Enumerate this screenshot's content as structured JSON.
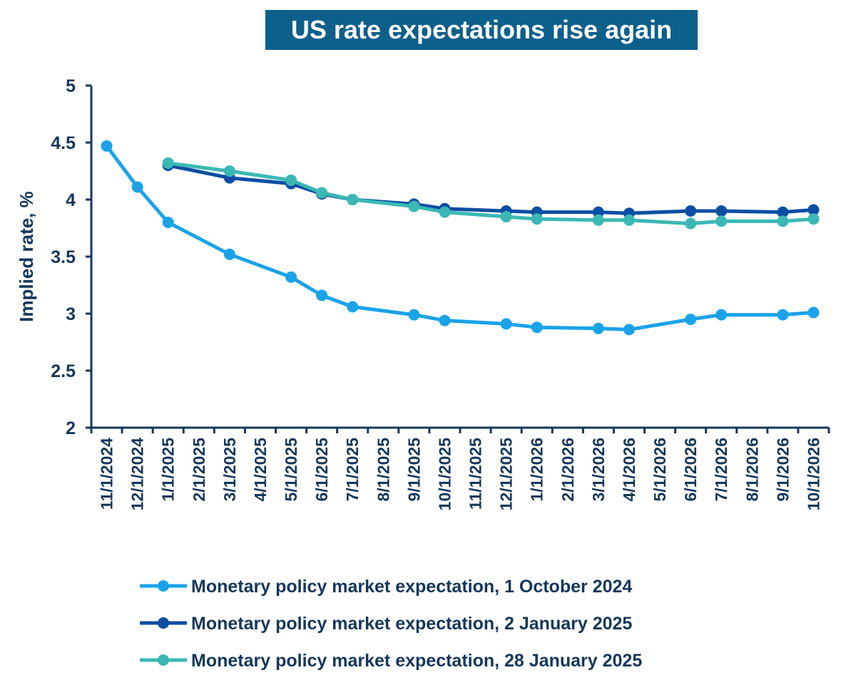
{
  "chart_data": {
    "type": "line",
    "title": "US rate expectations rise again",
    "xlabel": "",
    "ylabel": "Implied rate, %",
    "ylim": [
      2,
      5
    ],
    "yticks": [
      "2",
      "2.5",
      "3",
      "3.5",
      "4",
      "4.5",
      "5"
    ],
    "categories": [
      "11/1/2024",
      "12/1/2024",
      "1/1/2025",
      "2/1/2025",
      "3/1/2025",
      "4/1/2025",
      "5/1/2025",
      "6/1/2025",
      "7/1/2025",
      "8/1/2025",
      "9/1/2025",
      "10/1/2025",
      "11/1/2025",
      "12/1/2025",
      "1/1/2026",
      "2/1/2026",
      "3/1/2026",
      "4/1/2026",
      "5/1/2026",
      "6/1/2026",
      "7/1/2026",
      "8/1/2026",
      "9/1/2026",
      "10/1/2026"
    ],
    "series": [
      {
        "name": "Monetary policy market expectation, 1 October 2024",
        "color": "#1aa3e8",
        "points": [
          {
            "x": "11/1/2024",
            "y": 4.47
          },
          {
            "x": "12/1/2024",
            "y": 4.11
          },
          {
            "x": "1/1/2025",
            "y": 3.8
          },
          {
            "x": "3/1/2025",
            "y": 3.52
          },
          {
            "x": "5/1/2025",
            "y": 3.32
          },
          {
            "x": "6/1/2025",
            "y": 3.16
          },
          {
            "x": "7/1/2025",
            "y": 3.06
          },
          {
            "x": "9/1/2025",
            "y": 2.99
          },
          {
            "x": "10/1/2025",
            "y": 2.94
          },
          {
            "x": "12/1/2025",
            "y": 2.91
          },
          {
            "x": "1/1/2026",
            "y": 2.88
          },
          {
            "x": "3/1/2026",
            "y": 2.87
          },
          {
            "x": "4/1/2026",
            "y": 2.86
          },
          {
            "x": "6/1/2026",
            "y": 2.95
          },
          {
            "x": "7/1/2026",
            "y": 2.99
          },
          {
            "x": "9/1/2026",
            "y": 2.99
          },
          {
            "x": "10/1/2026",
            "y": 3.01
          }
        ]
      },
      {
        "name": "Monetary policy market expectation, 2 January 2025",
        "color": "#0b4ea2",
        "points": [
          {
            "x": "1/1/2025",
            "y": 4.3
          },
          {
            "x": "3/1/2025",
            "y": 4.19
          },
          {
            "x": "5/1/2025",
            "y": 4.14
          },
          {
            "x": "6/1/2025",
            "y": 4.05
          },
          {
            "x": "7/1/2025",
            "y": 4.0
          },
          {
            "x": "9/1/2025",
            "y": 3.96
          },
          {
            "x": "10/1/2025",
            "y": 3.92
          },
          {
            "x": "12/1/2025",
            "y": 3.9
          },
          {
            "x": "1/1/2026",
            "y": 3.89
          },
          {
            "x": "3/1/2026",
            "y": 3.89
          },
          {
            "x": "4/1/2026",
            "y": 3.88
          },
          {
            "x": "6/1/2026",
            "y": 3.9
          },
          {
            "x": "7/1/2026",
            "y": 3.9
          },
          {
            "x": "9/1/2026",
            "y": 3.89
          },
          {
            "x": "10/1/2026",
            "y": 3.91
          }
        ]
      },
      {
        "name": "Monetary policy market expectation, 28 January 2025",
        "color": "#3bb8b4",
        "points": [
          {
            "x": "1/1/2025",
            "y": 4.32
          },
          {
            "x": "3/1/2025",
            "y": 4.25
          },
          {
            "x": "5/1/2025",
            "y": 4.17
          },
          {
            "x": "6/1/2025",
            "y": 4.06
          },
          {
            "x": "7/1/2025",
            "y": 4.0
          },
          {
            "x": "9/1/2025",
            "y": 3.94
          },
          {
            "x": "10/1/2025",
            "y": 3.89
          },
          {
            "x": "12/1/2025",
            "y": 3.85
          },
          {
            "x": "1/1/2026",
            "y": 3.83
          },
          {
            "x": "3/1/2026",
            "y": 3.82
          },
          {
            "x": "4/1/2026",
            "y": 3.82
          },
          {
            "x": "6/1/2026",
            "y": 3.79
          },
          {
            "x": "7/1/2026",
            "y": 3.81
          },
          {
            "x": "9/1/2026",
            "y": 3.81
          },
          {
            "x": "10/1/2026",
            "y": 3.83
          }
        ]
      }
    ],
    "legend_position": "bottom"
  }
}
